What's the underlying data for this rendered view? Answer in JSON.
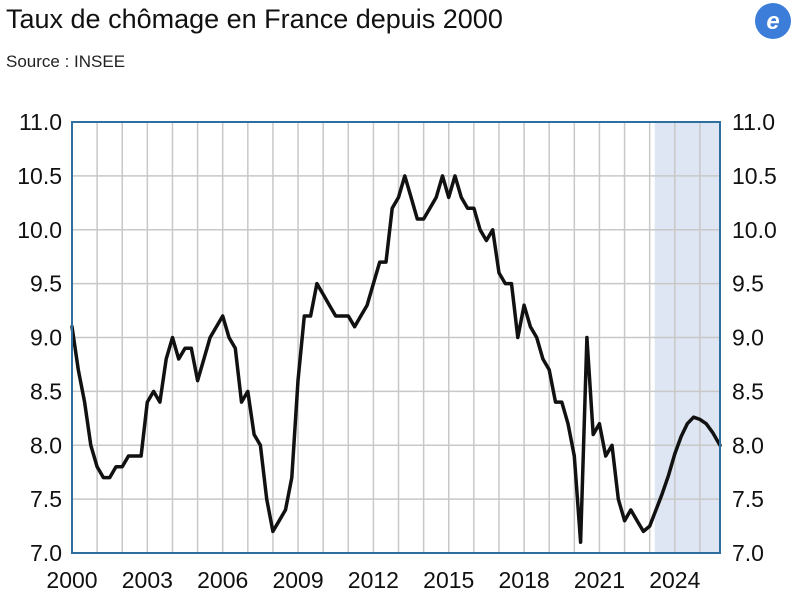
{
  "header": {
    "title": "Taux de chômage en France depuis 2000",
    "source": "Source : INSEE"
  },
  "logo": {
    "icon": "e-logo-icon",
    "color": "#3b7dd8"
  },
  "chart_data": {
    "type": "line",
    "title": "Taux de chômage en France depuis 2000",
    "subtitle": "Source : INSEE",
    "xlabel": "",
    "ylabel": "",
    "xlim": [
      2000,
      2025.8
    ],
    "ylim": [
      7.0,
      11.0
    ],
    "x_ticks": [
      2000,
      2003,
      2006,
      2009,
      2012,
      2015,
      2018,
      2021,
      2024
    ],
    "x_tick_labels": [
      "2000",
      "2003",
      "2006",
      "2009",
      "2012",
      "2015",
      "2018",
      "2021",
      "2024"
    ],
    "y_ticks": [
      7.0,
      7.5,
      8.0,
      8.5,
      9.0,
      9.5,
      10.0,
      10.5,
      11.0
    ],
    "y_tick_labels": [
      "7.0",
      "7.5",
      "8.0",
      "8.5",
      "9.0",
      "9.5",
      "10.0",
      "10.5",
      "11.0"
    ],
    "grid": true,
    "y_axis_right": true,
    "forecast_start": 2023.2,
    "colors": {
      "line": "#111111",
      "grid": "#c8c8c8",
      "frame": "#2f6fa0",
      "forecast": "#dde6f2"
    },
    "series": [
      {
        "x": [
          2000.0,
          2000.25,
          2000.5,
          2000.75,
          2001.0,
          2001.25,
          2001.5,
          2001.75,
          2002.0,
          2002.25,
          2002.5,
          2002.75,
          2003.0,
          2003.25,
          2003.5,
          2003.75,
          2004.0,
          2004.25,
          2004.5,
          2004.75,
          2005.0,
          2005.25,
          2005.5,
          2005.75,
          2006.0,
          2006.25,
          2006.5,
          2006.75,
          2007.0,
          2007.25,
          2007.5,
          2007.75,
          2008.0,
          2008.25,
          2008.5,
          2008.75,
          2009.0,
          2009.25,
          2009.5,
          2009.75,
          2010.0,
          2010.25,
          2010.5,
          2010.75,
          2011.0,
          2011.25,
          2011.5,
          2011.75,
          2012.0,
          2012.25,
          2012.5,
          2012.75,
          2013.0,
          2013.25,
          2013.5,
          2013.75,
          2014.0,
          2014.25,
          2014.5,
          2014.75,
          2015.0,
          2015.25,
          2015.5,
          2015.75,
          2016.0,
          2016.25,
          2016.5,
          2016.75,
          2017.0,
          2017.25,
          2017.5,
          2017.75,
          2018.0,
          2018.25,
          2018.5,
          2018.75,
          2019.0,
          2019.25,
          2019.5,
          2019.75,
          2020.0,
          2020.25,
          2020.5,
          2020.75,
          2021.0,
          2021.25,
          2021.5,
          2021.75,
          2022.0,
          2022.25,
          2022.5,
          2022.75,
          2023.0,
          2023.25,
          2023.5,
          2023.75,
          2024.0,
          2024.25,
          2024.5,
          2024.75,
          2025.0,
          2025.25,
          2025.5,
          2025.8
        ],
        "values": [
          9.1,
          8.7,
          8.4,
          8.0,
          7.8,
          7.7,
          7.7,
          7.8,
          7.8,
          7.9,
          7.9,
          7.9,
          8.4,
          8.5,
          8.4,
          8.8,
          9.0,
          8.8,
          8.9,
          8.9,
          8.6,
          8.8,
          9.0,
          9.1,
          9.2,
          9.0,
          8.9,
          8.4,
          8.5,
          8.1,
          8.0,
          7.5,
          7.2,
          7.3,
          7.4,
          7.7,
          8.6,
          9.2,
          9.2,
          9.5,
          9.4,
          9.3,
          9.2,
          9.2,
          9.2,
          9.1,
          9.2,
          9.3,
          9.5,
          9.7,
          9.7,
          10.2,
          10.3,
          10.5,
          10.3,
          10.1,
          10.1,
          10.2,
          10.3,
          10.5,
          10.3,
          10.5,
          10.3,
          10.2,
          10.2,
          10.0,
          9.9,
          10.0,
          9.6,
          9.5,
          9.5,
          9.0,
          9.3,
          9.1,
          9.0,
          8.8,
          8.7,
          8.4,
          8.4,
          8.2,
          7.9,
          7.1,
          9.0,
          8.1,
          8.2,
          7.9,
          8.0,
          7.5,
          7.3,
          7.4,
          7.3,
          7.2,
          7.25,
          7.4,
          7.55,
          7.72,
          7.92,
          8.08,
          8.2,
          8.26,
          8.24,
          8.2,
          8.12,
          8.0
        ]
      }
    ]
  }
}
